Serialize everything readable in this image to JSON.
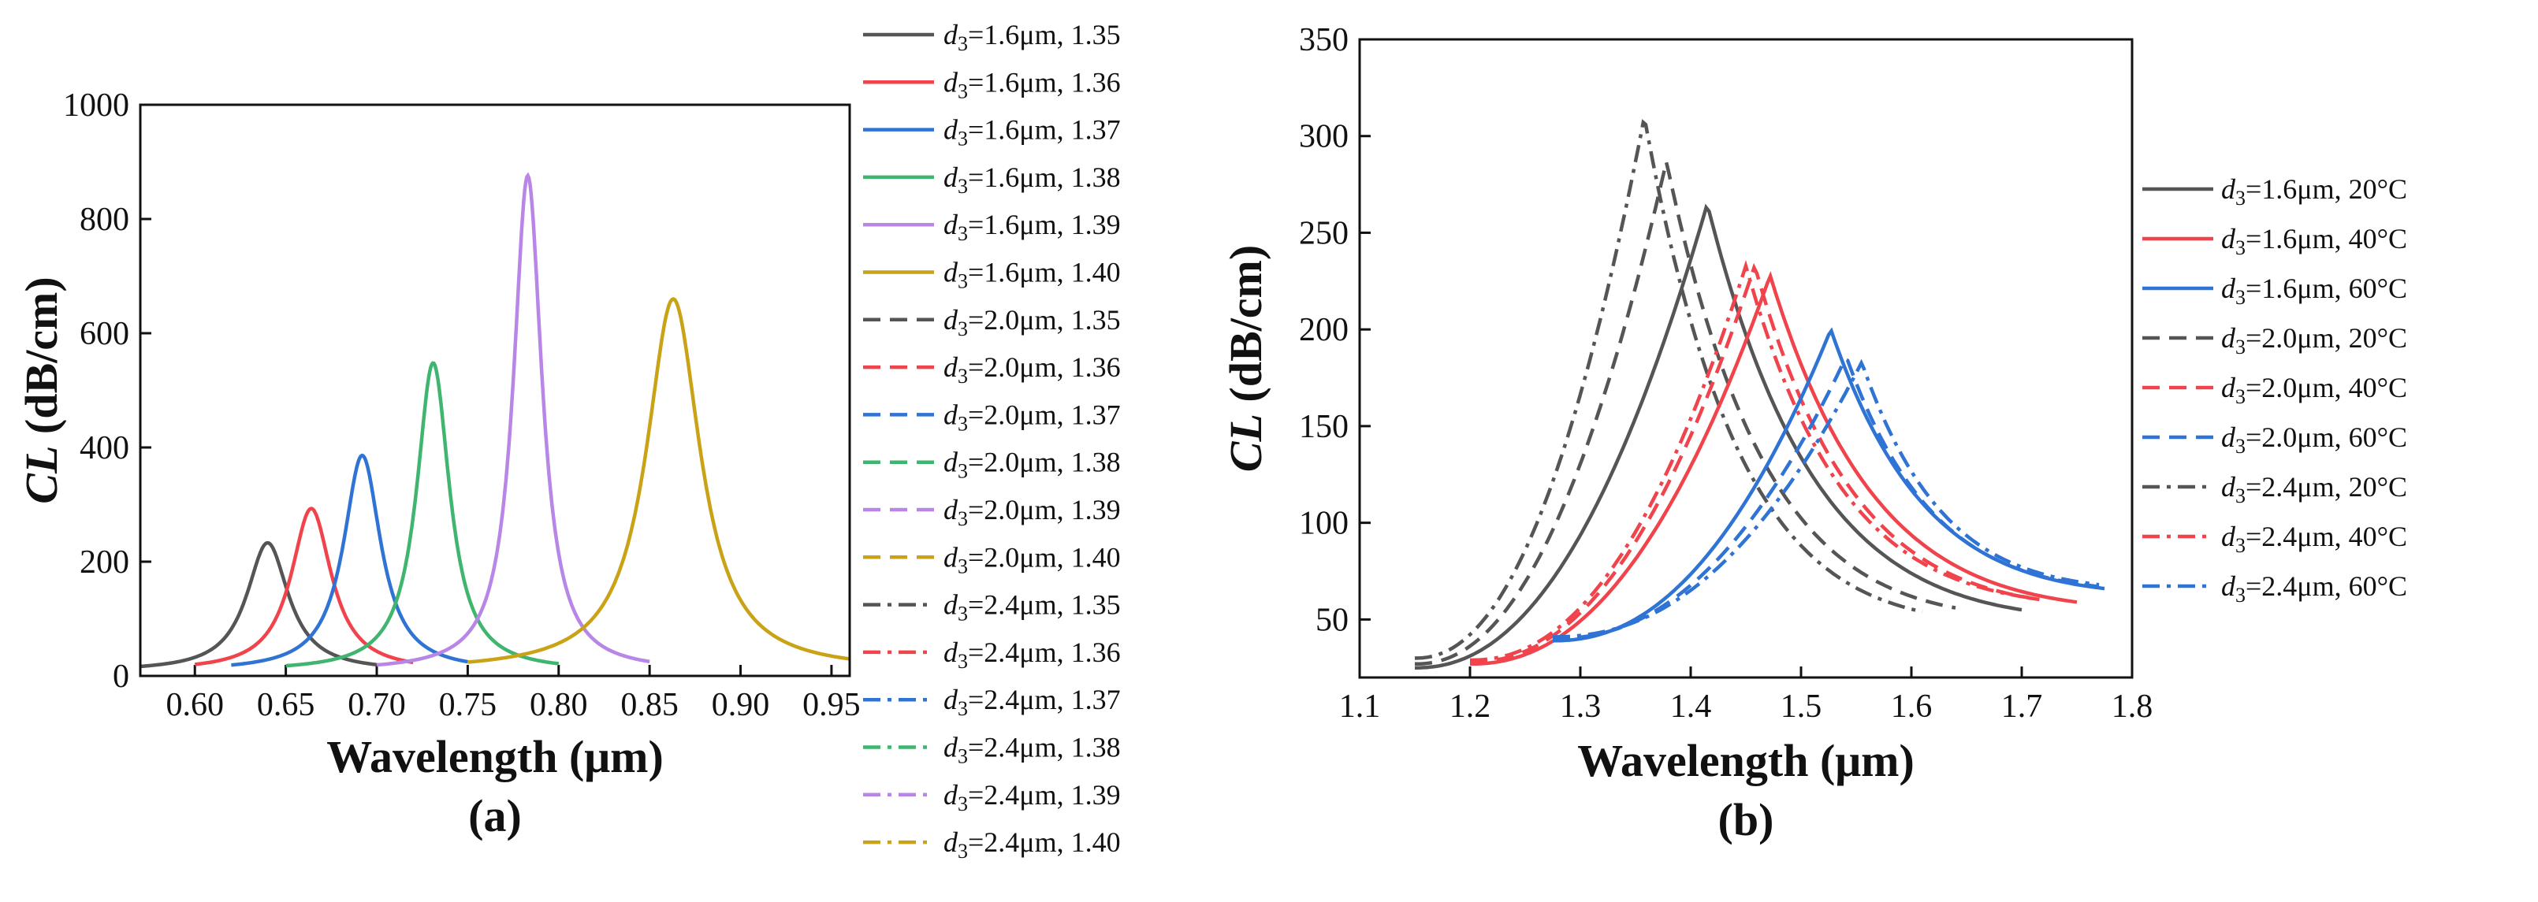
{
  "colors": {
    "1.35": "#555555",
    "1.36": "#f0434b",
    "1.37": "#2f74d4",
    "1.38": "#3fb56f",
    "1.39": "#b886e6",
    "1.40": "#c9a216",
    "20C": "#555555",
    "40C": "#f0434b",
    "60C": "#2f74d4"
  },
  "chart_data": [
    {
      "type": "line",
      "panel": "(a)",
      "xlabel": "Wavelength (μm)",
      "ylabel_var": "CL",
      "ylabel_unit": " (dB/cm)",
      "xlim": [
        0.57,
        0.96
      ],
      "ylim": [
        0,
        1000
      ],
      "xticks": [
        "0.60",
        "0.65",
        "0.70",
        "0.75",
        "0.80",
        "0.85",
        "0.90",
        "0.95"
      ],
      "yticks": [
        "0",
        "200",
        "400",
        "600",
        "800",
        "1000"
      ],
      "legend": [
        {
          "d": "d",
          "sub": "3",
          "rest": "=1.6μm, 1.35",
          "key": "1.35",
          "style": "solid"
        },
        {
          "d": "d",
          "sub": "3",
          "rest": "=1.6μm, 1.36",
          "key": "1.36",
          "style": "solid"
        },
        {
          "d": "d",
          "sub": "3",
          "rest": "=1.6μm, 1.37",
          "key": "1.37",
          "style": "solid"
        },
        {
          "d": "d",
          "sub": "3",
          "rest": "=1.6μm, 1.38",
          "key": "1.38",
          "style": "solid"
        },
        {
          "d": "d",
          "sub": "3",
          "rest": "=1.6μm, 1.39",
          "key": "1.39",
          "style": "solid"
        },
        {
          "d": "d",
          "sub": "3",
          "rest": "=1.6μm, 1.40",
          "key": "1.40",
          "style": "solid"
        },
        {
          "d": "d",
          "sub": "3",
          "rest": "=2.0μm, 1.35",
          "key": "1.35",
          "style": "dash"
        },
        {
          "d": "d",
          "sub": "3",
          "rest": "=2.0μm, 1.36",
          "key": "1.36",
          "style": "dash"
        },
        {
          "d": "d",
          "sub": "3",
          "rest": "=2.0μm, 1.37",
          "key": "1.37",
          "style": "dash"
        },
        {
          "d": "d",
          "sub": "3",
          "rest": "=2.0μm, 1.38",
          "key": "1.38",
          "style": "dash"
        },
        {
          "d": "d",
          "sub": "3",
          "rest": "=2.0μm, 1.39",
          "key": "1.39",
          "style": "dash"
        },
        {
          "d": "d",
          "sub": "3",
          "rest": "=2.0μm, 1.40",
          "key": "1.40",
          "style": "dash"
        },
        {
          "d": "d",
          "sub": "3",
          "rest": "=2.4μm, 1.35",
          "key": "1.35",
          "style": "dashdot"
        },
        {
          "d": "d",
          "sub": "3",
          "rest": "=2.4μm, 1.36",
          "key": "1.36",
          "style": "dashdot"
        },
        {
          "d": "d",
          "sub": "3",
          "rest": "=2.4μm, 1.37",
          "key": "1.37",
          "style": "dashdot"
        },
        {
          "d": "d",
          "sub": "3",
          "rest": "=2.4μm, 1.38",
          "key": "1.38",
          "style": "dashdot"
        },
        {
          "d": "d",
          "sub": "3",
          "rest": "=2.4μm, 1.39",
          "key": "1.39",
          "style": "dashdot"
        },
        {
          "d": "d",
          "sub": "3",
          "rest": "=2.4μm, 1.40",
          "key": "1.40",
          "style": "dashdot"
        }
      ],
      "series": [
        {
          "name": "d3=1.6μm, 1.35",
          "key": "1.35",
          "style": "solid",
          "peak_x": 0.64,
          "peak_y": 225,
          "fwhm": 0.028,
          "xrange": [
            0.57,
            0.7
          ],
          "base_y": 8
        },
        {
          "name": "d3=1.6μm, 1.36",
          "key": "1.36",
          "style": "solid",
          "peak_x": 0.664,
          "peak_y": 285,
          "fwhm": 0.027,
          "xrange": [
            0.6,
            0.72
          ],
          "base_y": 8
        },
        {
          "name": "d3=1.6μm, 1.37",
          "key": "1.37",
          "style": "solid",
          "peak_x": 0.692,
          "peak_y": 378,
          "fwhm": 0.025,
          "xrange": [
            0.62,
            0.75
          ],
          "base_y": 8
        },
        {
          "name": "d3=1.6μm, 1.38",
          "key": "1.38",
          "style": "solid",
          "peak_x": 0.731,
          "peak_y": 540,
          "fwhm": 0.022,
          "xrange": [
            0.65,
            0.8
          ],
          "base_y": 8
        },
        {
          "name": "d3=1.6μm, 1.39",
          "key": "1.39",
          "style": "solid",
          "peak_x": 0.783,
          "peak_y": 868,
          "fwhm": 0.019,
          "xrange": [
            0.7,
            0.85
          ],
          "base_y": 8
        },
        {
          "name": "d3=1.6μm, 1.40",
          "key": "1.40",
          "style": "solid",
          "peak_x": 0.863,
          "peak_y": 652,
          "fwhm": 0.036,
          "xrange": [
            0.75,
            0.96
          ],
          "base_y": 8
        }
      ]
    },
    {
      "type": "line",
      "panel": "(b)",
      "xlabel": "Wavelength (μm)",
      "ylabel_var": "CL",
      "ylabel_unit": " (dB/cm)",
      "xlim": [
        1.1,
        1.8
      ],
      "ylim": [
        20,
        350
      ],
      "xticks": [
        "1.1",
        "1.2",
        "1.3",
        "1.4",
        "1.5",
        "1.6",
        "1.7",
        "1.8"
      ],
      "yticks": [
        "50",
        "100",
        "150",
        "200",
        "250",
        "300",
        "350"
      ],
      "legend": [
        {
          "d": "d",
          "sub": "3",
          "rest": "=1.6μm, 20°C",
          "key": "20C",
          "style": "solid"
        },
        {
          "d": "d",
          "sub": "3",
          "rest": "=1.6μm, 40°C",
          "key": "40C",
          "style": "solid"
        },
        {
          "d": "d",
          "sub": "3",
          "rest": "=1.6μm, 60°C",
          "key": "60C",
          "style": "solid"
        },
        {
          "d": "d",
          "sub": "3",
          "rest": "=2.0μm, 20°C",
          "key": "20C",
          "style": "dash"
        },
        {
          "d": "d",
          "sub": "3",
          "rest": "=2.0μm, 40°C",
          "key": "40C",
          "style": "dash"
        },
        {
          "d": "d",
          "sub": "3",
          "rest": "=2.0μm, 60°C",
          "key": "60C",
          "style": "dash"
        },
        {
          "d": "d",
          "sub": "3",
          "rest": "=2.4μm, 20°C",
          "key": "20C",
          "style": "dashdot"
        },
        {
          "d": "d",
          "sub": "3",
          "rest": "=2.4μm, 40°C",
          "key": "40C",
          "style": "dashdot"
        },
        {
          "d": "d",
          "sub": "3",
          "rest": "=2.4μm, 60°C",
          "key": "60C",
          "style": "dashdot"
        }
      ],
      "series": [
        {
          "name": "d3=1.6μm, 20°C",
          "key": "20C",
          "style": "solid",
          "peak_x": 1.415,
          "peak_y": 265,
          "xrange": [
            1.15,
            1.7
          ],
          "start_y": 25,
          "end_y": 55
        },
        {
          "name": "d3=2.0μm, 20°C",
          "key": "20C",
          "style": "dash",
          "peak_x": 1.378,
          "peak_y": 287,
          "xrange": [
            1.15,
            1.64
          ],
          "start_y": 27,
          "end_y": 56
        },
        {
          "name": "d3=2.4μm, 20°C",
          "key": "20C",
          "style": "dashdot",
          "peak_x": 1.358,
          "peak_y": 310,
          "xrange": [
            1.15,
            1.61
          ],
          "start_y": 30,
          "end_y": 54
        },
        {
          "name": "d3=1.6μm, 40°C",
          "key": "40C",
          "style": "solid",
          "peak_x": 1.472,
          "peak_y": 228,
          "xrange": [
            1.2,
            1.75
          ],
          "start_y": 27,
          "end_y": 59
        },
        {
          "name": "d3=2.0μm, 40°C",
          "key": "40C",
          "style": "dash",
          "peak_x": 1.458,
          "peak_y": 233,
          "xrange": [
            1.2,
            1.72
          ],
          "start_y": 28,
          "end_y": 60
        },
        {
          "name": "d3=2.4μm, 40°C",
          "key": "40C",
          "style": "dashdot",
          "peak_x": 1.45,
          "peak_y": 233,
          "xrange": [
            1.2,
            1.71
          ],
          "start_y": 29,
          "end_y": 61
        },
        {
          "name": "d3=1.6μm, 60°C",
          "key": "60C",
          "style": "solid",
          "peak_x": 1.527,
          "peak_y": 200,
          "xrange": [
            1.275,
            1.775
          ],
          "start_y": 39,
          "end_y": 66
        },
        {
          "name": "d3=2.0μm, 60°C",
          "key": "60C",
          "style": "dash",
          "peak_x": 1.541,
          "peak_y": 186,
          "xrange": [
            1.275,
            1.77
          ],
          "start_y": 40,
          "end_y": 67
        },
        {
          "name": "d3=2.4μm, 60°C",
          "key": "60C",
          "style": "dashdot",
          "peak_x": 1.555,
          "peak_y": 183,
          "xrange": [
            1.275,
            1.77
          ],
          "start_y": 41,
          "end_y": 68
        }
      ]
    }
  ]
}
